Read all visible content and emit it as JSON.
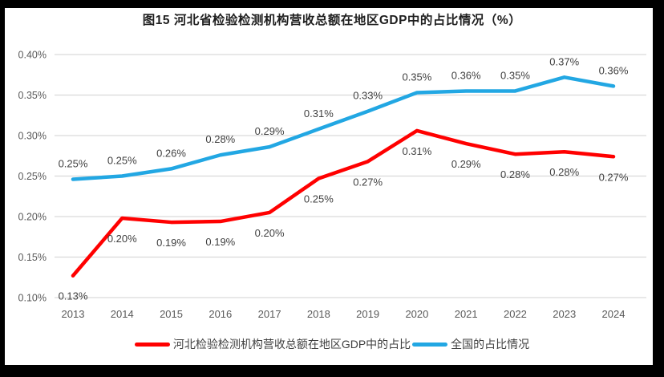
{
  "chart_data": {
    "type": "line",
    "title": "图15 河北省检验检测机构营收总额在地区GDP中的占比情况（%）",
    "categories": [
      "2013",
      "2014",
      "2015",
      "2016",
      "2017",
      "2018",
      "2019",
      "2020",
      "2021",
      "2022",
      "2023",
      "2024"
    ],
    "xlabel": "",
    "ylabel": "",
    "ylim": [
      0.1,
      0.4
    ],
    "grid": "horizontal",
    "legend_position": "bottom",
    "y_axis": {
      "ticks": [
        {
          "label": "0.40%",
          "value": 0.4
        },
        {
          "label": "0.35%",
          "value": 0.35
        },
        {
          "label": "0.30%",
          "value": 0.3
        },
        {
          "label": "0.25%",
          "value": 0.25
        },
        {
          "label": "0.20%",
          "value": 0.2
        },
        {
          "label": "0.15%",
          "value": 0.15
        },
        {
          "label": "0.10%",
          "value": 0.1
        }
      ]
    },
    "series": [
      {
        "name": "河北检验检测机构营收总额在地区GDP中的占比",
        "color": "#FF0000",
        "label_position": "below",
        "labels": [
          "0.13%",
          "0.20%",
          "0.19%",
          "0.19%",
          "0.20%",
          "0.25%",
          "0.27%",
          "0.31%",
          "0.29%",
          "0.28%",
          "0.28%",
          "0.27%"
        ],
        "values": [
          0.13,
          0.2,
          0.19,
          0.19,
          0.2,
          0.25,
          0.27,
          0.31,
          0.29,
          0.28,
          0.28,
          0.27
        ],
        "plot_values": [
          0.127,
          0.198,
          0.193,
          0.194,
          0.205,
          0.247,
          0.268,
          0.306,
          0.29,
          0.277,
          0.28,
          0.274
        ]
      },
      {
        "name": "全国的占比情况",
        "color": "#22A7E3",
        "label_position": "above",
        "labels": [
          "0.25%",
          "0.25%",
          "0.26%",
          "0.28%",
          "0.29%",
          "0.31%",
          "0.33%",
          "0.35%",
          "0.36%",
          "0.35%",
          "0.37%",
          "0.36%"
        ],
        "values": [
          0.25,
          0.25,
          0.26,
          0.28,
          0.29,
          0.31,
          0.33,
          0.35,
          0.36,
          0.35,
          0.37,
          0.36
        ],
        "plot_values": [
          0.246,
          0.25,
          0.259,
          0.276,
          0.286,
          0.308,
          0.33,
          0.353,
          0.355,
          0.355,
          0.372,
          0.361
        ]
      }
    ]
  },
  "styles": {
    "grid_color": "#D9D9D9",
    "axis_text_color": "#595959",
    "data_label_color": "#404040",
    "title_color": "#1F1F1F",
    "frame_color": "#000000",
    "background": "#FFFFFF"
  }
}
